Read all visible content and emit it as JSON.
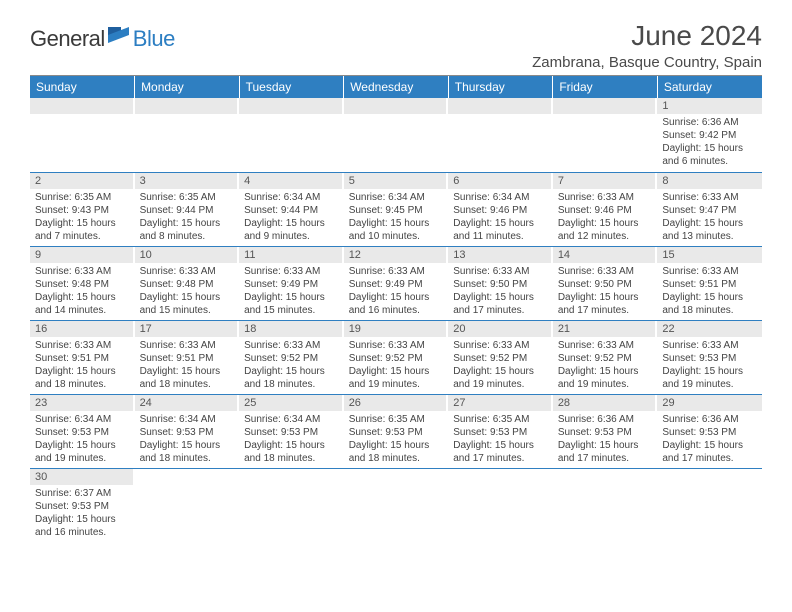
{
  "logo": {
    "part1": "General",
    "part2": "Blue"
  },
  "title": "June 2024",
  "location": "Zambrana, Basque Country, Spain",
  "colors": {
    "header_bg": "#2f7fc1",
    "header_text": "#ffffff",
    "daynum_bg": "#e9e9e9",
    "daynum_text": "#555555",
    "body_text": "#444444",
    "rule": "#2f7fc1",
    "logo_gray": "#3a3a3a",
    "logo_blue": "#2c7ec2"
  },
  "weekdays": [
    "Sunday",
    "Monday",
    "Tuesday",
    "Wednesday",
    "Thursday",
    "Friday",
    "Saturday"
  ],
  "weeks": [
    [
      null,
      null,
      null,
      null,
      null,
      null,
      {
        "n": "1",
        "sr": "Sunrise: 6:36 AM",
        "ss": "Sunset: 9:42 PM",
        "d1": "Daylight: 15 hours",
        "d2": "and 6 minutes."
      }
    ],
    [
      {
        "n": "2",
        "sr": "Sunrise: 6:35 AM",
        "ss": "Sunset: 9:43 PM",
        "d1": "Daylight: 15 hours",
        "d2": "and 7 minutes."
      },
      {
        "n": "3",
        "sr": "Sunrise: 6:35 AM",
        "ss": "Sunset: 9:44 PM",
        "d1": "Daylight: 15 hours",
        "d2": "and 8 minutes."
      },
      {
        "n": "4",
        "sr": "Sunrise: 6:34 AM",
        "ss": "Sunset: 9:44 PM",
        "d1": "Daylight: 15 hours",
        "d2": "and 9 minutes."
      },
      {
        "n": "5",
        "sr": "Sunrise: 6:34 AM",
        "ss": "Sunset: 9:45 PM",
        "d1": "Daylight: 15 hours",
        "d2": "and 10 minutes."
      },
      {
        "n": "6",
        "sr": "Sunrise: 6:34 AM",
        "ss": "Sunset: 9:46 PM",
        "d1": "Daylight: 15 hours",
        "d2": "and 11 minutes."
      },
      {
        "n": "7",
        "sr": "Sunrise: 6:33 AM",
        "ss": "Sunset: 9:46 PM",
        "d1": "Daylight: 15 hours",
        "d2": "and 12 minutes."
      },
      {
        "n": "8",
        "sr": "Sunrise: 6:33 AM",
        "ss": "Sunset: 9:47 PM",
        "d1": "Daylight: 15 hours",
        "d2": "and 13 minutes."
      }
    ],
    [
      {
        "n": "9",
        "sr": "Sunrise: 6:33 AM",
        "ss": "Sunset: 9:48 PM",
        "d1": "Daylight: 15 hours",
        "d2": "and 14 minutes."
      },
      {
        "n": "10",
        "sr": "Sunrise: 6:33 AM",
        "ss": "Sunset: 9:48 PM",
        "d1": "Daylight: 15 hours",
        "d2": "and 15 minutes."
      },
      {
        "n": "11",
        "sr": "Sunrise: 6:33 AM",
        "ss": "Sunset: 9:49 PM",
        "d1": "Daylight: 15 hours",
        "d2": "and 15 minutes."
      },
      {
        "n": "12",
        "sr": "Sunrise: 6:33 AM",
        "ss": "Sunset: 9:49 PM",
        "d1": "Daylight: 15 hours",
        "d2": "and 16 minutes."
      },
      {
        "n": "13",
        "sr": "Sunrise: 6:33 AM",
        "ss": "Sunset: 9:50 PM",
        "d1": "Daylight: 15 hours",
        "d2": "and 17 minutes."
      },
      {
        "n": "14",
        "sr": "Sunrise: 6:33 AM",
        "ss": "Sunset: 9:50 PM",
        "d1": "Daylight: 15 hours",
        "d2": "and 17 minutes."
      },
      {
        "n": "15",
        "sr": "Sunrise: 6:33 AM",
        "ss": "Sunset: 9:51 PM",
        "d1": "Daylight: 15 hours",
        "d2": "and 18 minutes."
      }
    ],
    [
      {
        "n": "16",
        "sr": "Sunrise: 6:33 AM",
        "ss": "Sunset: 9:51 PM",
        "d1": "Daylight: 15 hours",
        "d2": "and 18 minutes."
      },
      {
        "n": "17",
        "sr": "Sunrise: 6:33 AM",
        "ss": "Sunset: 9:51 PM",
        "d1": "Daylight: 15 hours",
        "d2": "and 18 minutes."
      },
      {
        "n": "18",
        "sr": "Sunrise: 6:33 AM",
        "ss": "Sunset: 9:52 PM",
        "d1": "Daylight: 15 hours",
        "d2": "and 18 minutes."
      },
      {
        "n": "19",
        "sr": "Sunrise: 6:33 AM",
        "ss": "Sunset: 9:52 PM",
        "d1": "Daylight: 15 hours",
        "d2": "and 19 minutes."
      },
      {
        "n": "20",
        "sr": "Sunrise: 6:33 AM",
        "ss": "Sunset: 9:52 PM",
        "d1": "Daylight: 15 hours",
        "d2": "and 19 minutes."
      },
      {
        "n": "21",
        "sr": "Sunrise: 6:33 AM",
        "ss": "Sunset: 9:52 PM",
        "d1": "Daylight: 15 hours",
        "d2": "and 19 minutes."
      },
      {
        "n": "22",
        "sr": "Sunrise: 6:33 AM",
        "ss": "Sunset: 9:53 PM",
        "d1": "Daylight: 15 hours",
        "d2": "and 19 minutes."
      }
    ],
    [
      {
        "n": "23",
        "sr": "Sunrise: 6:34 AM",
        "ss": "Sunset: 9:53 PM",
        "d1": "Daylight: 15 hours",
        "d2": "and 19 minutes."
      },
      {
        "n": "24",
        "sr": "Sunrise: 6:34 AM",
        "ss": "Sunset: 9:53 PM",
        "d1": "Daylight: 15 hours",
        "d2": "and 18 minutes."
      },
      {
        "n": "25",
        "sr": "Sunrise: 6:34 AM",
        "ss": "Sunset: 9:53 PM",
        "d1": "Daylight: 15 hours",
        "d2": "and 18 minutes."
      },
      {
        "n": "26",
        "sr": "Sunrise: 6:35 AM",
        "ss": "Sunset: 9:53 PM",
        "d1": "Daylight: 15 hours",
        "d2": "and 18 minutes."
      },
      {
        "n": "27",
        "sr": "Sunrise: 6:35 AM",
        "ss": "Sunset: 9:53 PM",
        "d1": "Daylight: 15 hours",
        "d2": "and 17 minutes."
      },
      {
        "n": "28",
        "sr": "Sunrise: 6:36 AM",
        "ss": "Sunset: 9:53 PM",
        "d1": "Daylight: 15 hours",
        "d2": "and 17 minutes."
      },
      {
        "n": "29",
        "sr": "Sunrise: 6:36 AM",
        "ss": "Sunset: 9:53 PM",
        "d1": "Daylight: 15 hours",
        "d2": "and 17 minutes."
      }
    ],
    [
      {
        "n": "30",
        "sr": "Sunrise: 6:37 AM",
        "ss": "Sunset: 9:53 PM",
        "d1": "Daylight: 15 hours",
        "d2": "and 16 minutes."
      },
      null,
      null,
      null,
      null,
      null,
      null
    ]
  ]
}
